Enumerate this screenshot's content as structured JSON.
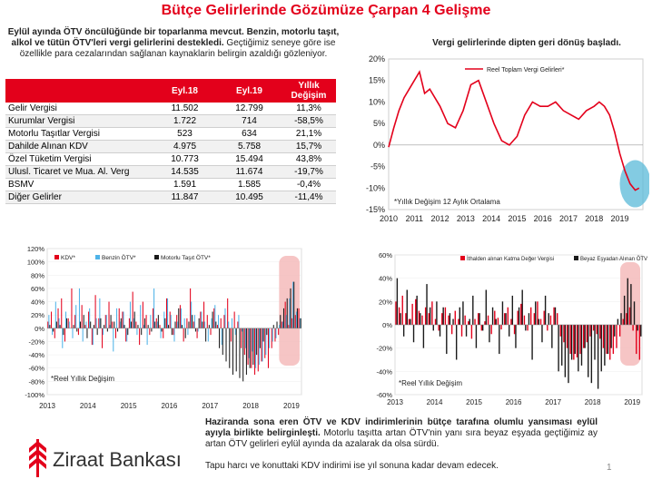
{
  "page": {
    "title": "Bütçe Gelirlerinde Gözümüze Çarpan 4 Gelişme",
    "intro_bold": "Eylül ayında ÖTV öncülüğünde bir toparlanma mevcut. Benzin, motorlu taşıt, alkol ve tütün ÖTV'leri vergi gelirlerini destekledi.",
    "intro_rest": "Geçtiğimiz seneye göre ise özellikle para cezalarından sağlanan kaynaklarin belirgin azaldığı gözleniyor.",
    "note_p1_bold": "Haziranda sona eren ÖTV ve KDV indirimlerinin bütçe tarafına olumlu yansıması eylül ayıyla birlikte belirginleşti.",
    "note_p1_rest": " Motorlu taşıtta artan ÖTV'nin yanı sıra beyaz eşyada geçtiğimiz ay artan ÖTV gelirleri eylül ayında da azalarak da olsa sürdü.",
    "note_p2": "Tapu harcı ve konuttaki KDV indirimi ise yıl sonuna kadar devam edecek.",
    "page_number": "1",
    "logo_text": "Ziraat Bankası",
    "colors": {
      "brand": "#e3001b",
      "blue": "#4fb3e8",
      "black": "#1a1a1a",
      "highlight_red": "#f4b6b6",
      "highlight_blue": "#5ab9d8"
    }
  },
  "table": {
    "headers": [
      "",
      "Eyl.18",
      "Eyl.19",
      "Yıllık Değişim"
    ],
    "rows": [
      [
        "Gelir Vergisi",
        "11.502",
        "12.799",
        "11,3%"
      ],
      [
        "Kurumlar Vergisi",
        "1.722",
        "714",
        "-58,5%"
      ],
      [
        "Motorlu Taşıtlar Vergisi",
        "523",
        "634",
        "21,1%"
      ],
      [
        "Dahilde Alınan KDV",
        "4.975",
        "5.758",
        "15,7%"
      ],
      [
        "Özel Tüketim Vergisi",
        "10.773",
        "15.494",
        "43,8%"
      ],
      [
        "Ulusl. Ticaret ve Mua. Al. Verg",
        "14.535",
        "11.674",
        "-19,7%"
      ],
      [
        "BSMV",
        "1.591",
        "1.585",
        "-0,4%"
      ],
      [
        "Diğer Gelirler",
        "11.847",
        "10.495",
        "-11,4%"
      ]
    ]
  },
  "chart_data": [
    {
      "type": "line",
      "title": "Vergi gelirlerinde dipten geri dönüş başladı.",
      "legend": [
        "Reel Toplam Vergi Gelirleri*"
      ],
      "legend_position": "top-right",
      "footnote": "*Yıllık Değişim 12 Aylık Ortalama",
      "yticks": [
        "20%",
        "15%",
        "10%",
        "5%",
        "0%",
        "-5%",
        "-10%",
        "-15%"
      ],
      "xticks": [
        "2010",
        "2011",
        "2012",
        "2013",
        "2014",
        "2015",
        "2016",
        "2017",
        "2018",
        "2019"
      ],
      "ylim": [
        -15,
        20
      ],
      "xlim": [
        2010,
        2019.9
      ],
      "series": [
        {
          "name": "Reel Toplam Vergi Gelirleri*",
          "color": "#e3001b",
          "x": [
            2010.0,
            2010.2,
            2010.4,
            2010.6,
            2010.8,
            2011.0,
            2011.2,
            2011.4,
            2011.6,
            2011.8,
            2012.0,
            2012.3,
            2012.6,
            2012.9,
            2013.2,
            2013.5,
            2013.8,
            2014.1,
            2014.4,
            2014.7,
            2015.0,
            2015.3,
            2015.6,
            2015.9,
            2016.2,
            2016.5,
            2016.8,
            2017.1,
            2017.4,
            2017.7,
            2018.0,
            2018.2,
            2018.4,
            2018.6,
            2018.8,
            2019.0,
            2019.2,
            2019.4,
            2019.6,
            2019.75
          ],
          "y": [
            -0.5,
            4,
            8,
            11,
            13,
            15,
            17,
            12,
            13,
            11,
            9,
            5,
            4,
            8,
            14,
            15,
            10,
            5,
            1,
            0,
            2,
            7,
            10,
            9,
            9,
            10,
            8,
            7,
            6,
            8,
            9,
            10,
            9,
            7,
            3,
            -2,
            -6,
            -9,
            -10.5,
            -10
          ]
        }
      ]
    },
    {
      "type": "bar",
      "legend": [
        "KDV*",
        "Benzin ÖTV*",
        "Motorlu Taşıt ÖTV*"
      ],
      "legend_position": "top",
      "footnote": "*Reel Yıllık Değişim",
      "yticks": [
        "120%",
        "100%",
        "80%",
        "60%",
        "40%",
        "20%",
        "0%",
        "-20%",
        "-40%",
        "-60%",
        "-80%",
        "-100%"
      ],
      "xticks": [
        "2013",
        "2014",
        "2015",
        "2016",
        "2017",
        "2018",
        "2019"
      ],
      "ylim": [
        -100,
        120
      ],
      "x_start": 2013.0,
      "x_step": 0.0833,
      "series": [
        {
          "name": "KDV*",
          "color": "#e3001b",
          "values": [
            10,
            25,
            -15,
            30,
            45,
            -20,
            15,
            60,
            20,
            -10,
            35,
            5,
            25,
            -25,
            50,
            15,
            -30,
            20,
            40,
            10,
            -15,
            30,
            25,
            -20,
            15,
            55,
            10,
            -25,
            40,
            20,
            -10,
            30,
            15,
            5,
            -15,
            45,
            25,
            -10,
            20,
            35,
            -20,
            15,
            60,
            10,
            -15,
            25,
            40,
            20,
            -10,
            30,
            5,
            15,
            20,
            45,
            -20,
            25,
            10,
            -30,
            -40,
            -55,
            -60,
            -70,
            -65,
            -50,
            -45,
            -60,
            -30,
            -20,
            -10,
            10,
            40,
            5,
            15,
            20,
            30
          ]
        },
        {
          "name": "Benzin ÖTV*",
          "color": "#4fb3e8",
          "values": [
            20,
            -10,
            40,
            15,
            -30,
            25,
            10,
            -15,
            35,
            60,
            -20,
            10,
            30,
            -25,
            15,
            45,
            -10,
            20,
            5,
            -35,
            30,
            10,
            25,
            -20,
            40,
            15,
            -10,
            35,
            5,
            -25,
            20,
            60,
            10,
            -15,
            25,
            45,
            20,
            -20,
            10,
            30,
            15,
            -10,
            40,
            20,
            -5,
            25,
            10,
            -20,
            15,
            35,
            20,
            -25,
            30,
            10,
            15,
            -10,
            20,
            -5,
            -30,
            -45,
            -35,
            -60,
            -55,
            -50,
            -40,
            -30,
            -20,
            -15,
            5,
            10,
            20,
            45,
            70,
            25,
            15
          ]
        },
        {
          "name": "Motorlu Taşıt ÖTV*",
          "color": "#1a1a1a",
          "values": [
            5,
            -5,
            10,
            5,
            -10,
            15,
            0,
            5,
            -5,
            10,
            20,
            -15,
            10,
            5,
            -10,
            15,
            5,
            -5,
            20,
            10,
            -5,
            15,
            5,
            -10,
            10,
            25,
            5,
            -10,
            15,
            5,
            -5,
            10,
            20,
            -5,
            15,
            5,
            -10,
            10,
            30,
            5,
            -15,
            10,
            20,
            -5,
            15,
            10,
            -20,
            5,
            25,
            10,
            -30,
            -40,
            -50,
            -60,
            -70,
            -65,
            -75,
            -80,
            -70,
            -60,
            -55,
            -40,
            -30,
            -20,
            -10,
            0,
            5,
            10,
            20,
            30,
            45,
            60,
            70,
            30,
            15
          ]
        }
      ]
    },
    {
      "type": "bar",
      "legend": [
        "İthalden alınan Katma Değer Vergisi",
        "Beyaz Eşyadan Alınan ÖTV"
      ],
      "legend_position": "top",
      "footnote": "*Reel Yıllık Değişim",
      "yticks": [
        "60%",
        "40%",
        "20%",
        "0%",
        "-20%",
        "-40%",
        "-60%"
      ],
      "xticks": [
        "2013",
        "2014",
        "2015",
        "2016",
        "2017",
        "2018",
        "2019"
      ],
      "ylim": [
        -60,
        60
      ],
      "x_start": 2013.0,
      "x_step": 0.0833,
      "series": [
        {
          "name": "İthalden alınan Katma Değer Vergisi",
          "color": "#e3001b",
          "values": [
            20,
            15,
            25,
            10,
            5,
            18,
            22,
            12,
            8,
            15,
            10,
            20,
            5,
            -5,
            10,
            15,
            8,
            -8,
            12,
            5,
            -10,
            8,
            3,
            -12,
            5,
            10,
            -5,
            3,
            8,
            -8,
            12,
            6,
            -4,
            10,
            15,
            5,
            -8,
            12,
            18,
            8,
            -5,
            15,
            10,
            20,
            5,
            12,
            -5,
            8,
            15,
            10,
            -10,
            -15,
            -20,
            -25,
            -30,
            -28,
            -25,
            -20,
            -15,
            -10,
            -5,
            -8,
            -12,
            -20,
            -25,
            -30,
            -25,
            -20,
            -10,
            5,
            10,
            15,
            -5,
            -25,
            -30
          ]
        },
        {
          "name": "Beyaz Eşyadan Alınan ÖTV",
          "color": "#1a1a1a",
          "values": [
            40,
            10,
            -10,
            30,
            5,
            -15,
            25,
            10,
            -20,
            35,
            15,
            -5,
            20,
            -10,
            15,
            -25,
            10,
            5,
            -30,
            15,
            20,
            -10,
            5,
            25,
            -20,
            10,
            -5,
            30,
            -15,
            15,
            5,
            -25,
            20,
            10,
            -10,
            25,
            -20,
            15,
            30,
            -5,
            10,
            -30,
            20,
            5,
            -15,
            25,
            10,
            -20,
            15,
            -40,
            -35,
            -45,
            -50,
            -30,
            -25,
            -40,
            -35,
            -20,
            -45,
            -50,
            -30,
            -55,
            -40,
            -35,
            -25,
            -20,
            -10,
            5,
            10,
            25,
            40,
            35,
            20,
            -5,
            -10
          ]
        }
      ]
    }
  ]
}
